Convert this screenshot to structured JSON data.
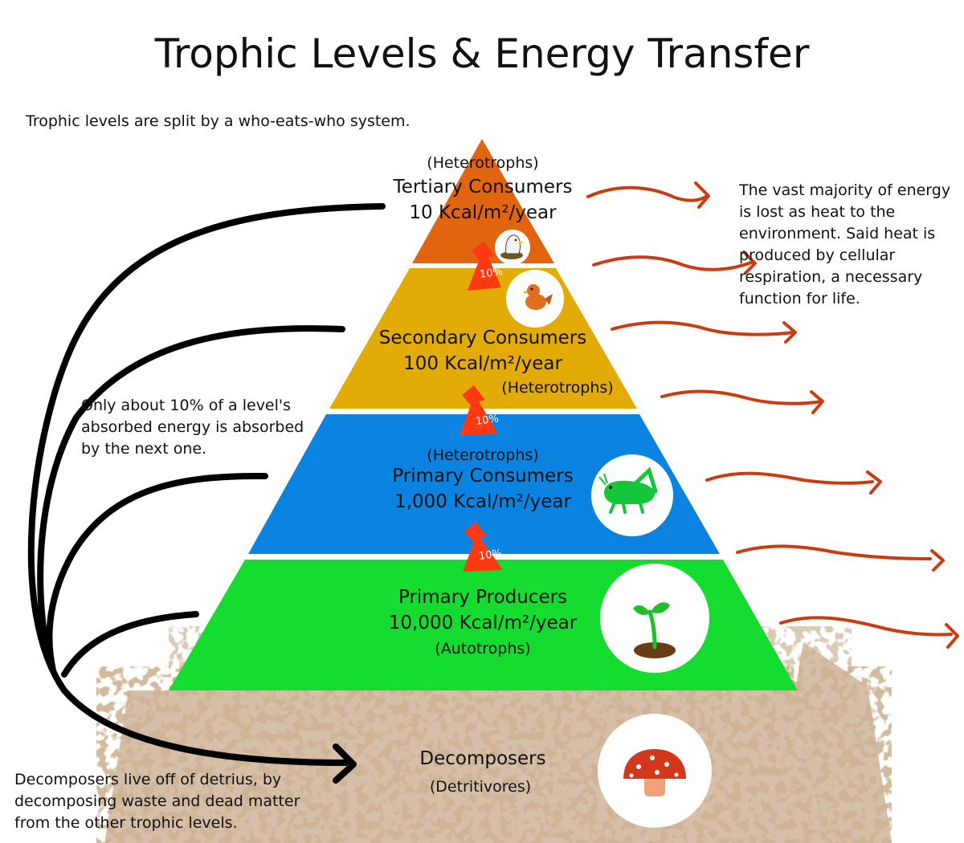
{
  "title": "Trophic Levels & Energy Transfer",
  "intro": "Trophic levels are split by a who-eats-who system.",
  "levels": {
    "tertiary": {
      "type": "(Heterotrophs)",
      "name": "Tertiary Consumers",
      "energy": "10 Kcal/m²/year",
      "color": "#e0650e",
      "icon": "eagle-icon"
    },
    "secondary": {
      "type": "(Heterotrophs)",
      "name": "Secondary Consumers",
      "energy": "100 Kcal/m²/year",
      "color": "#e3ab06",
      "icon": "bird-icon"
    },
    "primary_consumers": {
      "type": "(Heterotrophs)",
      "name": "Primary Consumers",
      "energy": "1,000 Kcal/m²/year",
      "color": "#0a84e0",
      "icon": "grasshopper-icon"
    },
    "producers": {
      "type": "(Autotrophs)",
      "name": "Primary Producers",
      "energy": "10,000 Kcal/m²/year",
      "color": "#15dd2f",
      "icon": "sprout-icon"
    },
    "decomposers": {
      "type": "(Detritivores)",
      "name": "Decomposers",
      "color": "#a5774d",
      "icon": "mushroom-icon"
    }
  },
  "transfer_label": "10%",
  "notes": {
    "heat": "The vast majority of energy is lost as heat to the environment. Said heat is produced by cellular respiration, a necessary function for life.",
    "ten_percent": "Only about 10% of a level's absorbed energy is absorbed by the next one.",
    "decomposers": "Decomposers live off of detrius, by decomposing waste and dead matter from the other trophic levels."
  },
  "colors": {
    "heat_arrow": "#cc3b10",
    "transfer_arrow": "#ff3a12",
    "decomposer_arrow": "#000000"
  }
}
